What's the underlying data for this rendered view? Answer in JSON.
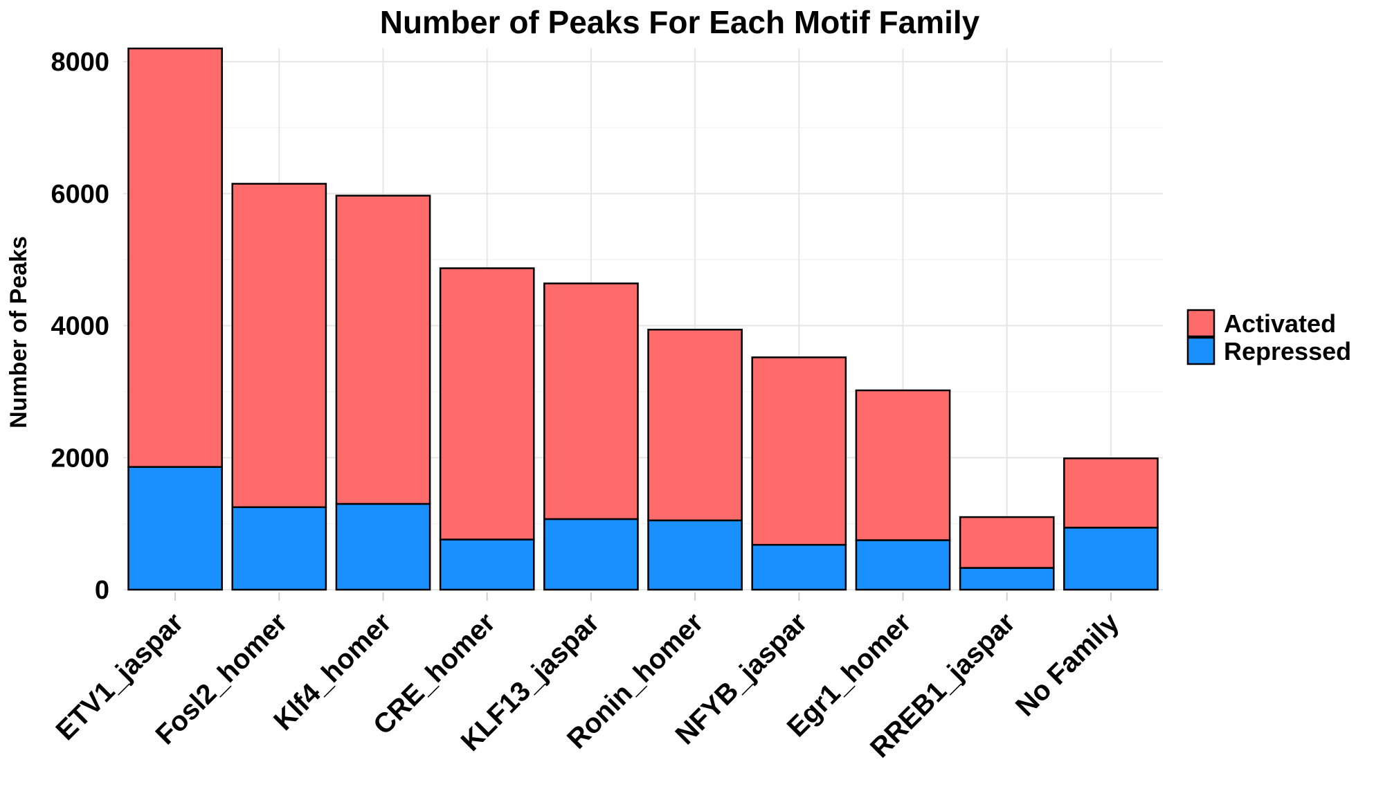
{
  "chart_data": {
    "type": "bar",
    "stacked": true,
    "title": "Number of Peaks For Each Motif Family",
    "xlabel": "",
    "ylabel": "Number of Peaks",
    "ylim": [
      0,
      8200
    ],
    "yticks": [
      0,
      2000,
      4000,
      6000,
      8000
    ],
    "grid": true,
    "legend_position": "right",
    "categories": [
      "ETV1_jaspar",
      "Fosl2_homer",
      "Klf4_homer",
      "CRE_homer",
      "KLF13_jaspar",
      "Ronin_homer",
      "NFYB_jaspar",
      "Egr1_homer",
      "RREB1_jaspar",
      "No Family"
    ],
    "series": [
      {
        "name": "Repressed",
        "color": "#1a90ff",
        "values": [
          1860,
          1250,
          1300,
          760,
          1070,
          1050,
          680,
          750,
          330,
          940
        ]
      },
      {
        "name": "Activated",
        "color": "#ff6b6b",
        "values": [
          6340,
          4900,
          4670,
          4110,
          3570,
          2890,
          2840,
          2270,
          770,
          1050
        ]
      }
    ],
    "legend_order": [
      "Activated",
      "Repressed"
    ]
  }
}
